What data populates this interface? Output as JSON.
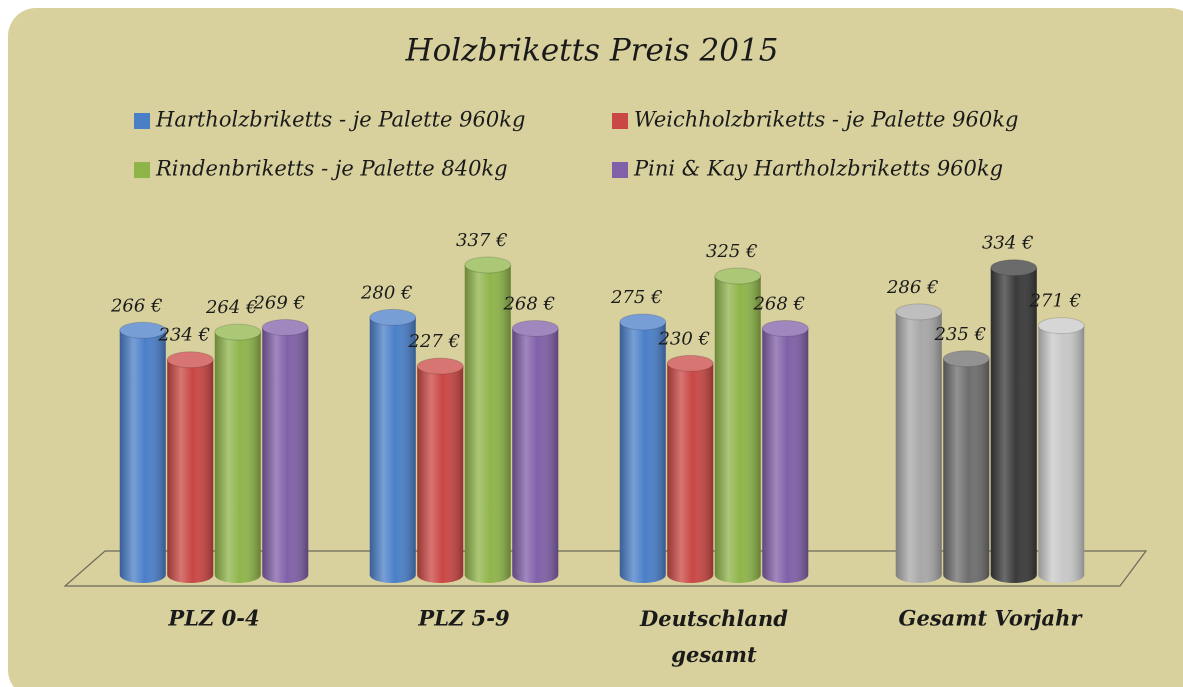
{
  "chart_data": {
    "type": "bar",
    "title": "Holzbriketts Preis 2015",
    "categories": [
      "PLZ 0-4",
      "PLZ 5-9",
      "Deutschland gesamt",
      "Gesamt Vorjahr"
    ],
    "ylim": [
      0,
      400
    ],
    "series": [
      {
        "name": "Hartholzbriketts - je Palette 960kg",
        "color": "#4a7fc8",
        "point_colors": [
          "#4a7fc8",
          "#4a7fc8",
          "#4a7fc8",
          "#a8a8a8"
        ],
        "values": [
          266,
          280,
          275,
          286
        ],
        "value_labels": [
          "266 €",
          "280 €",
          "275 €",
          "286 €"
        ]
      },
      {
        "name": "Weichholzbriketts - je Palette 960kg",
        "color": "#c94744",
        "point_colors": [
          "#c94744",
          "#c94744",
          "#c94744",
          "#6e6e6e"
        ],
        "values": [
          234,
          227,
          230,
          235
        ],
        "value_labels": [
          "234 €",
          "227 €",
          "230 €",
          "235 €"
        ]
      },
      {
        "name": "Rindenbriketts - je Palette 840kg",
        "color": "#8fb54a",
        "point_colors": [
          "#8fb54a",
          "#8fb54a",
          "#8fb54a",
          "#3a3a3a"
        ],
        "values": [
          264,
          337,
          325,
          334
        ],
        "value_labels": [
          "264 €",
          "337 €",
          "325 €",
          "334 €"
        ]
      },
      {
        "name": "Pini & Kay Hartholzbriketts 960kg",
        "color": "#8060a8",
        "point_colors": [
          "#8060a8",
          "#8060a8",
          "#8060a8",
          "#c8c8c8"
        ],
        "values": [
          269,
          268,
          268,
          271
        ],
        "value_labels": [
          "269 €",
          "268 €",
          "268 €",
          "271 €"
        ]
      }
    ]
  }
}
